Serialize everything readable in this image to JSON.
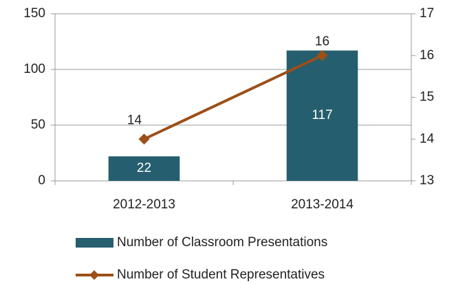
{
  "chart_data": {
    "type": "combo",
    "categories": [
      "2012-2013",
      "2013-2014"
    ],
    "series": [
      {
        "name": "Number of Classroom Presentations",
        "type": "bar",
        "color": "#255e6e",
        "values": [
          22,
          117
        ]
      },
      {
        "name": "Number of Student Representatives",
        "type": "line",
        "color": "#9c4f17",
        "values": [
          14,
          16
        ],
        "axis": "y2"
      }
    ],
    "ylim": [
      0,
      150
    ],
    "yticks": [
      0,
      50,
      100,
      150
    ],
    "y2lim": [
      13,
      17
    ],
    "y2ticks": [
      13,
      14,
      15,
      16,
      17
    ],
    "grid": true,
    "legend": "bottom"
  }
}
